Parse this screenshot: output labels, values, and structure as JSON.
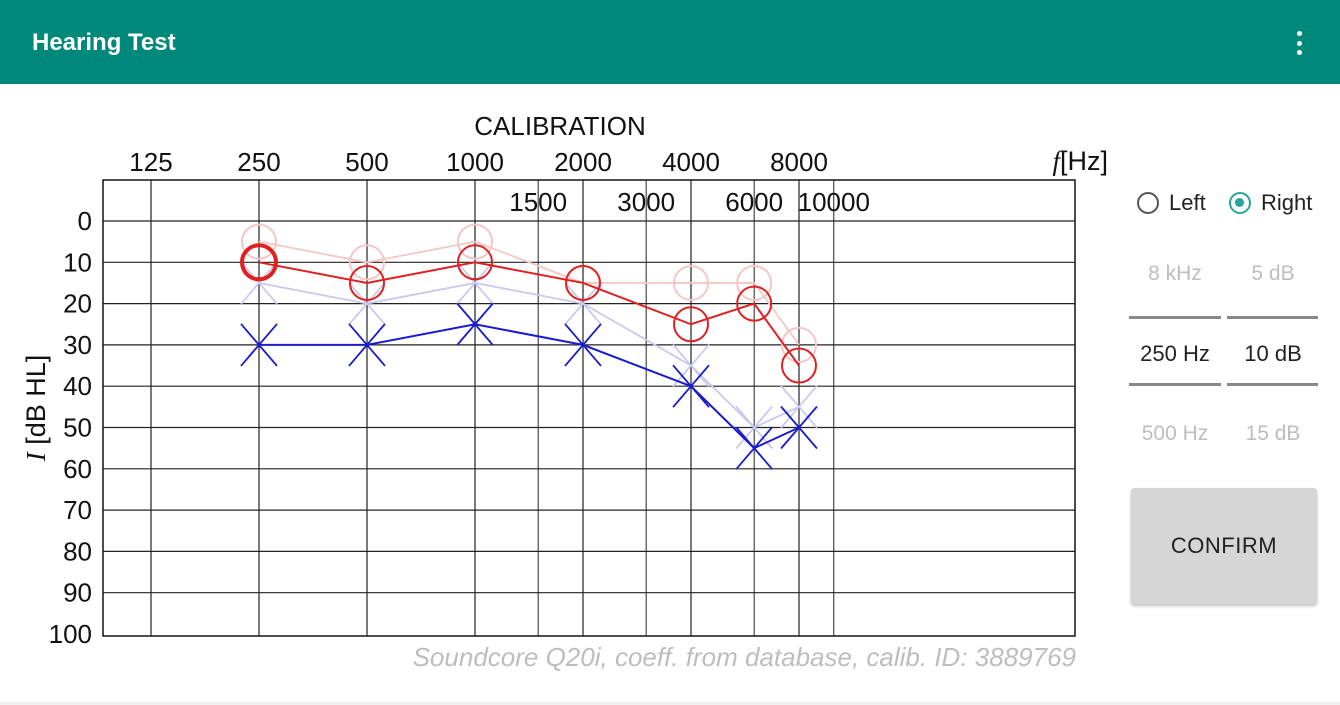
{
  "app": {
    "title": "Hearing Test"
  },
  "chart_data": {
    "type": "line",
    "title": "CALIBRATION",
    "xlabel": "f [Hz]",
    "x_axis_symbol": "f",
    "x_axis_unit": "[Hz]",
    "ylabel": "I [dB HL]",
    "y_axis_symbol": "I",
    "y_axis_unit": "[dB HL]",
    "x_ticks_major": [
      125,
      250,
      500,
      1000,
      2000,
      4000,
      8000
    ],
    "x_ticks_minor": [
      1500,
      3000,
      6000,
      10000
    ],
    "y_ticks": [
      0,
      10,
      20,
      30,
      40,
      50,
      60,
      70,
      80,
      90,
      100
    ],
    "ylim": [
      0,
      100
    ],
    "y_inverted": true,
    "series": [
      {
        "ear": "right",
        "role": "reference",
        "color": "#f5c6c6",
        "marker": "circle",
        "x": [
          250,
          500,
          1000,
          2000,
          4000,
          6000,
          8000
        ],
        "y": [
          5,
          10,
          5,
          15,
          15,
          15,
          30
        ]
      },
      {
        "ear": "left",
        "role": "reference",
        "color": "#c9c9ec",
        "marker": "x",
        "x": [
          250,
          500,
          1000,
          2000,
          4000,
          6000,
          8000
        ],
        "y": [
          15,
          20,
          15,
          20,
          35,
          50,
          45
        ]
      },
      {
        "ear": "right",
        "role": "current",
        "color": "#e02020",
        "marker": "circle",
        "x": [
          250,
          500,
          1000,
          2000,
          4000,
          6000,
          8000
        ],
        "y": [
          10,
          15,
          10,
          15,
          25,
          20,
          35
        ]
      },
      {
        "ear": "left",
        "role": "current",
        "color": "#1a1ad0",
        "marker": "x",
        "x": [
          250,
          500,
          1000,
          2000,
          4000,
          6000,
          8000
        ],
        "y": [
          30,
          30,
          25,
          30,
          40,
          55,
          50
        ]
      }
    ],
    "highlight_point": {
      "x": 250,
      "y": 10
    }
  },
  "footer_note": "Soundcore Q20i, coeff. from database, calib. ID: 3889769",
  "ear_select": {
    "left_label": "Left",
    "right_label": "Right",
    "selected": "Right"
  },
  "picker": {
    "freq_above": "8 kHz",
    "freq_selected": "250 Hz",
    "freq_below": "500 Hz",
    "level_above": "5 dB",
    "level_selected": "10 dB",
    "level_below": "15 dB"
  },
  "confirm_label": "CONFIRM",
  "colors": {
    "accent": "#00897b",
    "radio": "#26a69a"
  }
}
